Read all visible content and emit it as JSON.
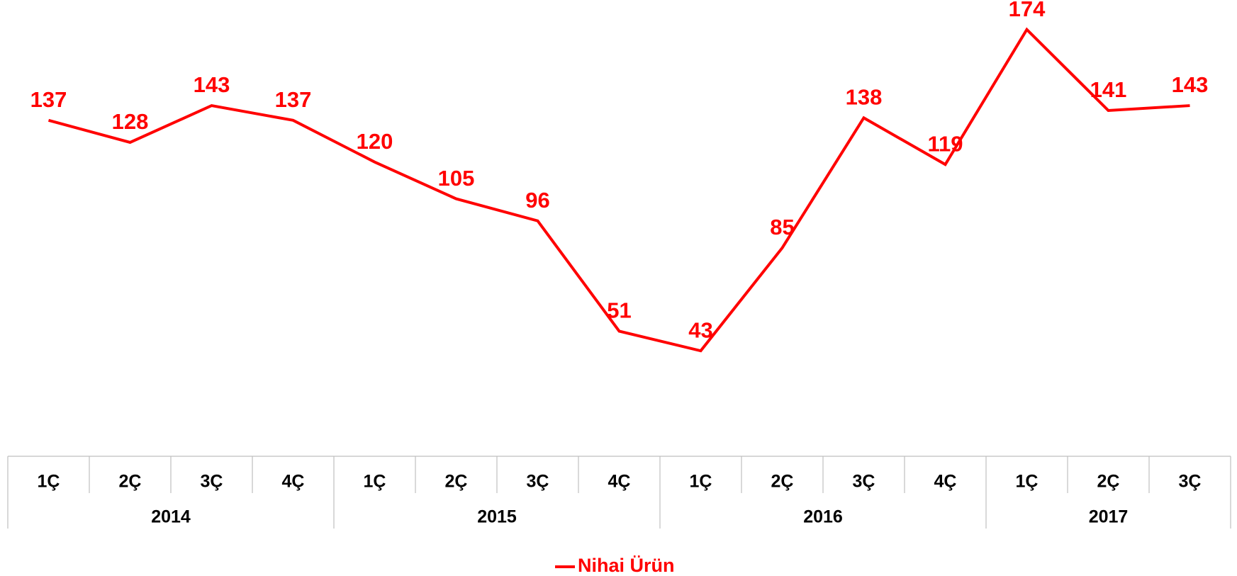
{
  "chart_data": {
    "type": "line",
    "categories": [
      "1Ç",
      "2Ç",
      "3Ç",
      "4Ç",
      "1Ç",
      "2Ç",
      "3Ç",
      "4Ç",
      "1Ç",
      "2Ç",
      "3Ç",
      "4Ç",
      "1Ç",
      "2Ç",
      "3Ç"
    ],
    "category_groups": [
      "2014",
      null,
      null,
      null,
      "2015",
      null,
      null,
      null,
      "2016",
      null,
      null,
      null,
      "2017",
      null,
      null
    ],
    "series": [
      {
        "name": "Nihai Ürün",
        "color": "#ff0000",
        "values": [
          137,
          128,
          143,
          137,
          120,
          105,
          96,
          51,
          43,
          85,
          138,
          119,
          174,
          141,
          143
        ]
      }
    ],
    "ylim": [
      0,
      180
    ]
  }
}
